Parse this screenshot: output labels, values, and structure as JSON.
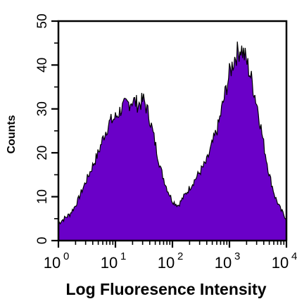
{
  "chart_data": {
    "type": "area",
    "title": "",
    "xlabel": "Log Fluoresence Intensity",
    "ylabel": "Counts",
    "x_scale": "log",
    "xlim": [
      1,
      10000
    ],
    "ylim": [
      0,
      50
    ],
    "x_ticks": [
      {
        "value": 1,
        "base": "10",
        "exp": "0"
      },
      {
        "value": 10,
        "base": "10",
        "exp": "1"
      },
      {
        "value": 100,
        "base": "10",
        "exp": "2"
      },
      {
        "value": 1000,
        "base": "10",
        "exp": "3"
      },
      {
        "value": 10000,
        "base": "10",
        "exp": "4"
      }
    ],
    "y_ticks": [
      "0",
      "10",
      "20",
      "30",
      "40",
      "50"
    ],
    "y_tick_values": [
      0,
      10,
      20,
      30,
      40,
      50
    ],
    "grid": false,
    "fill_color": "#6a00c8",
    "line_color": "#000000",
    "series": [
      {
        "x": [
          1,
          1.26,
          1.58,
          2.0,
          2.51,
          3.16,
          3.98,
          5.01,
          6.31,
          7.94,
          10,
          12.6,
          15.8,
          20.0,
          25.1,
          31.6,
          39.8,
          50.1,
          63.1,
          79.4,
          100,
          126,
          158,
          200,
          251,
          316,
          398,
          501,
          631,
          794,
          1000,
          1259,
          1585,
          1995,
          2512,
          3162,
          3981,
          5012,
          6310,
          7943,
          10000
        ],
        "values": [
          4,
          5,
          6,
          8,
          11,
          14,
          17,
          20,
          24,
          27,
          28,
          30,
          31,
          32,
          31,
          32,
          28,
          22,
          16,
          12,
          9,
          8,
          10,
          12,
          14,
          16,
          18,
          22,
          26,
          32,
          38,
          42,
          44,
          41,
          36,
          30,
          22,
          15,
          10,
          7,
          5
        ]
      }
    ]
  }
}
